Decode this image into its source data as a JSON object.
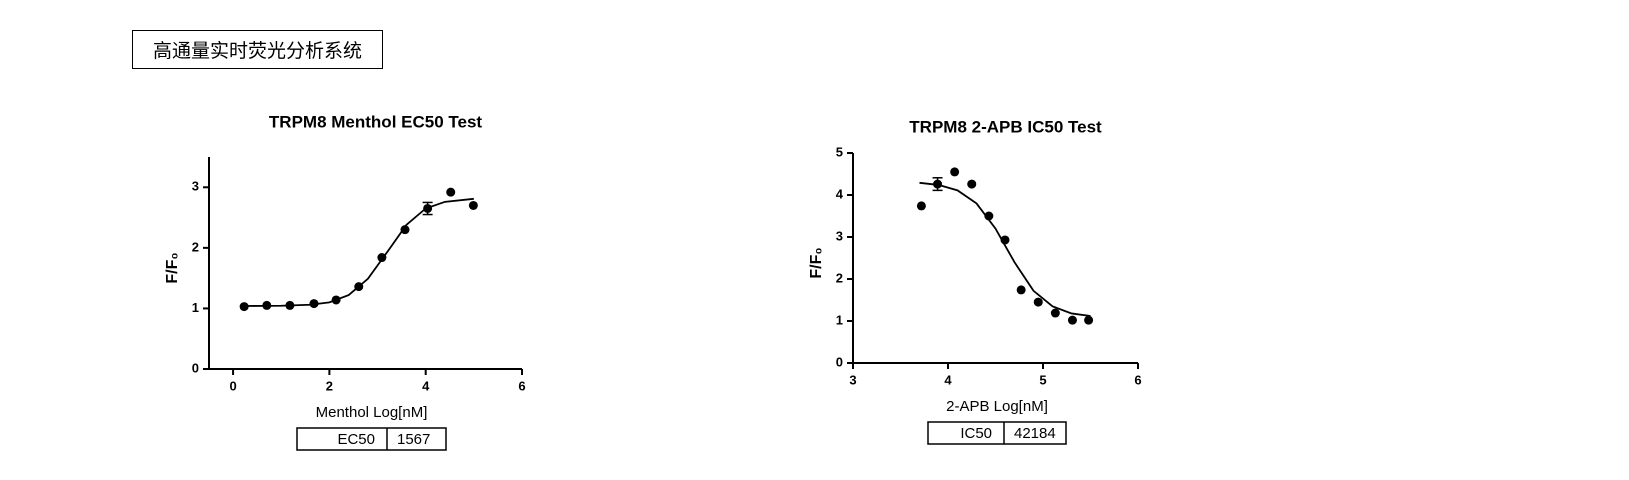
{
  "header": {
    "title": "高通量实时荧光分析系统"
  },
  "chart_data": [
    {
      "type": "scatter",
      "title": "TRPM8 Menthol EC50 Test",
      "x_label": "Menthol  Log[nM]",
      "y_label": "F/F₀",
      "x": [
        0.23,
        0.7,
        1.18,
        1.68,
        2.14,
        2.61,
        3.09,
        3.57,
        4.04,
        4.52,
        4.99
      ],
      "values": [
        1.03,
        1.05,
        1.05,
        1.08,
        1.14,
        1.36,
        1.84,
        2.3,
        2.65,
        2.92,
        2.7
      ],
      "errors": [
        null,
        null,
        null,
        null,
        null,
        null,
        null,
        null,
        0.1,
        null,
        null
      ],
      "curve": {
        "x": [
          0.2,
          1.0,
          1.6,
          2.0,
          2.4,
          2.8,
          3.2,
          3.6,
          4.0,
          4.4,
          5.0
        ],
        "y": [
          1.04,
          1.044,
          1.061,
          1.1,
          1.22,
          1.49,
          1.93,
          2.38,
          2.65,
          2.76,
          2.81
        ]
      },
      "color": "#000000",
      "xlim": [
        -0.5,
        6
      ],
      "xticks": [
        0,
        2,
        4,
        6
      ],
      "ylim": [
        0,
        3.5
      ],
      "yticks": [
        0,
        1,
        2,
        3
      ],
      "table": [
        "EC50",
        1567
      ]
    },
    {
      "type": "scatter",
      "title": "TRPM8 2-APB IC50 Test",
      "x_label": "2-APB  Log[nM]",
      "y_label": "F/F₀",
      "x": [
        3.72,
        3.89,
        4.07,
        4.25,
        4.43,
        4.6,
        4.77,
        4.95,
        5.13,
        5.31,
        5.48
      ],
      "values": [
        3.74,
        4.26,
        4.55,
        4.26,
        3.5,
        2.93,
        1.74,
        1.45,
        1.19,
        1.02,
        1.02
      ],
      "errors": [
        null,
        0.15,
        null,
        null,
        null,
        null,
        null,
        null,
        null,
        null,
        null
      ],
      "curve": {
        "x": [
          3.7,
          3.9,
          4.1,
          4.3,
          4.5,
          4.6,
          4.7,
          4.9,
          5.1,
          5.3,
          5.5
        ],
        "y": [
          4.29,
          4.24,
          4.11,
          3.8,
          3.2,
          2.8,
          2.4,
          1.72,
          1.35,
          1.18,
          1.12
        ]
      },
      "color": "#000000",
      "xlim": [
        3,
        6
      ],
      "xticks": [
        3,
        4,
        5,
        6
      ],
      "ylim": [
        0,
        5
      ],
      "yticks": [
        0,
        1,
        2,
        3,
        4,
        5
      ],
      "table": [
        "IC50",
        42184
      ]
    }
  ]
}
